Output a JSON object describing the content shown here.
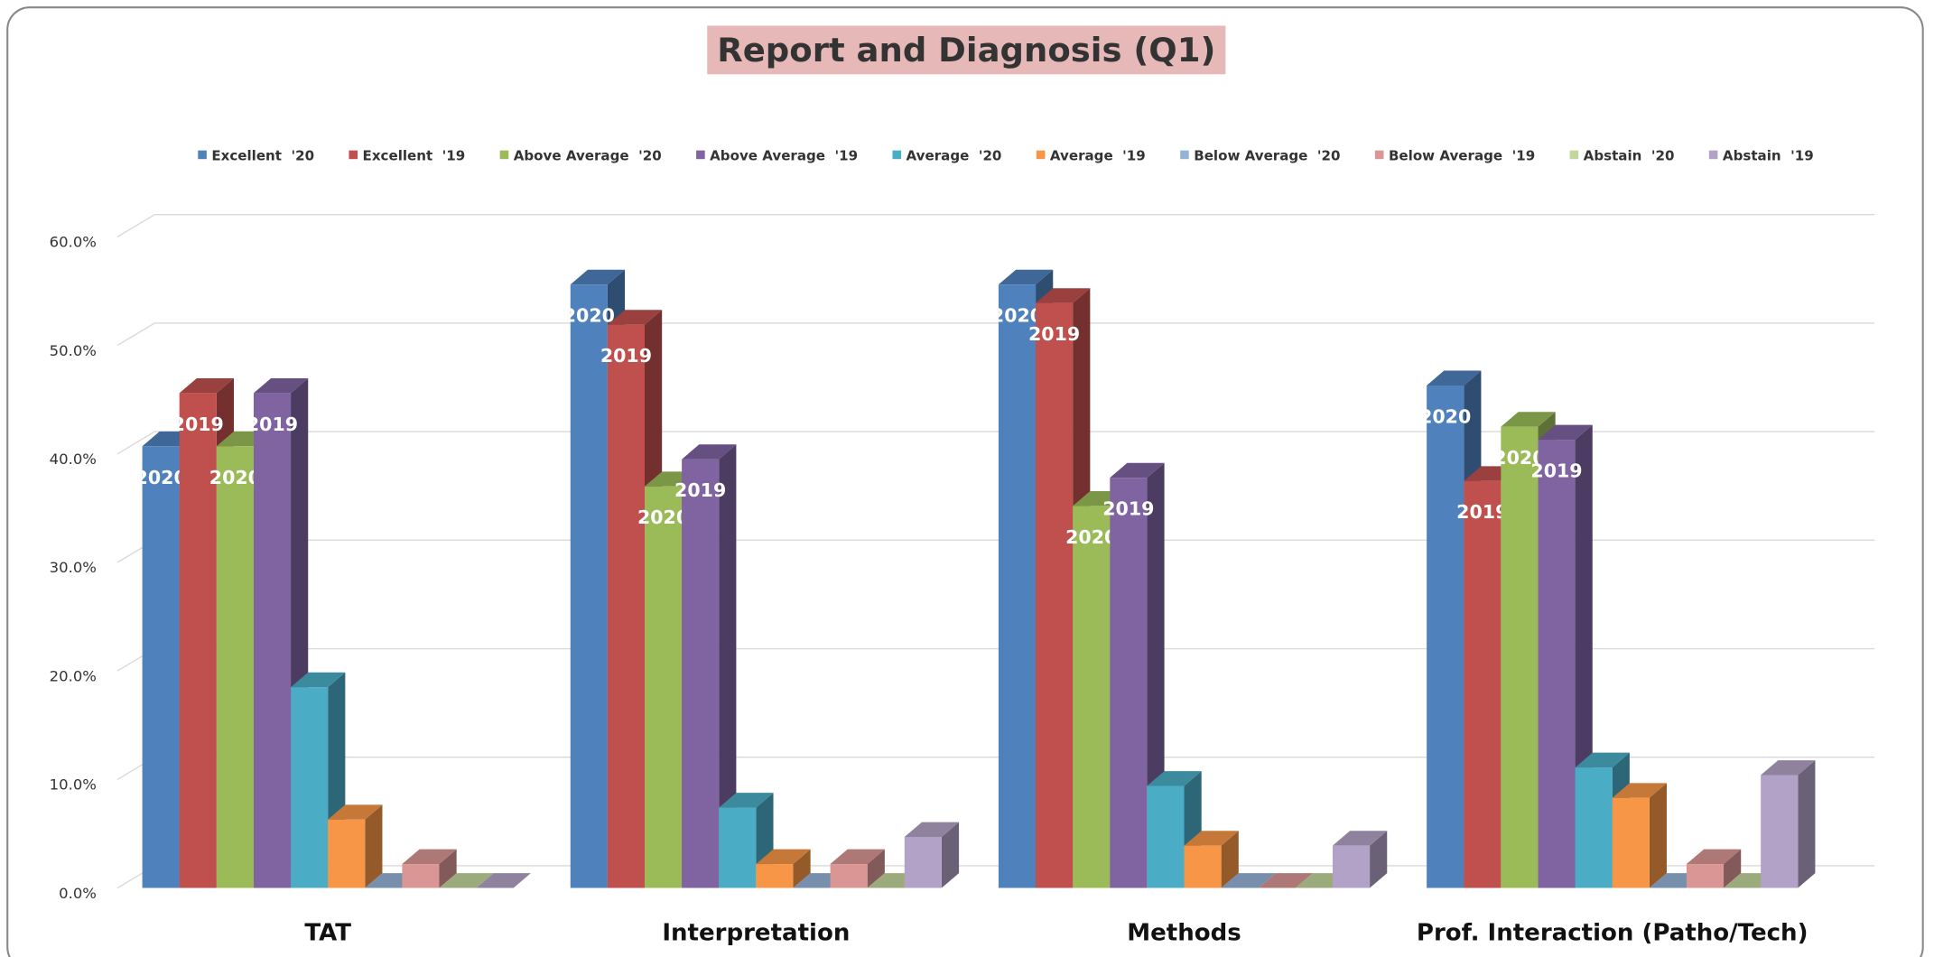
{
  "chart_data": {
    "type": "bar3d",
    "title": "Report and Diagnosis (Q1)",
    "categories": [
      "TAT",
      "Interpretation",
      "Methods",
      "Prof. Interaction (Patho/Tech)"
    ],
    "series": [
      {
        "name": "Excellent  '20",
        "color": "#4f81bd",
        "label": "2020",
        "values": [
          40.7,
          55.6,
          55.6,
          46.3
        ]
      },
      {
        "name": "Excellent  '19",
        "color": "#c0504d",
        "label": "2019",
        "values": [
          45.6,
          51.9,
          53.9,
          37.5
        ]
      },
      {
        "name": "Above Average  '20",
        "color": "#9bbb59",
        "label": "2020",
        "values": [
          40.7,
          37.0,
          35.2,
          42.5
        ]
      },
      {
        "name": "Above Average  '19",
        "color": "#8064a2",
        "label": "2019",
        "values": [
          45.6,
          39.5,
          37.8,
          41.3
        ]
      },
      {
        "name": "Average  '20",
        "color": "#4bacc6",
        "values": [
          18.5,
          7.4,
          9.4,
          11.1
        ]
      },
      {
        "name": "Average  '19",
        "color": "#f79646",
        "values": [
          6.3,
          2.2,
          3.9,
          8.3
        ]
      },
      {
        "name": "Below Average  '20",
        "color": "#95b3d7",
        "values": [
          0,
          0,
          0,
          0
        ]
      },
      {
        "name": "Below Average  '19",
        "color": "#d99694",
        "values": [
          2.2,
          2.2,
          0,
          2.2
        ]
      },
      {
        "name": "Abstain  '20",
        "color": "#c3d69b",
        "values": [
          0,
          0,
          0,
          0
        ]
      },
      {
        "name": "Abstain  '19",
        "color": "#b3a2c7",
        "values": [
          0,
          4.7,
          3.9,
          10.4
        ]
      }
    ],
    "ylim": [
      0,
      60
    ],
    "yticks": [
      {
        "value": 0,
        "label": "0.0%"
      },
      {
        "value": 10,
        "label": "10.0%"
      },
      {
        "value": 20,
        "label": "20.0%"
      },
      {
        "value": 30,
        "label": "30.0%"
      },
      {
        "value": 40,
        "label": "40.0%"
      },
      {
        "value": 50,
        "label": "50.0%"
      },
      {
        "value": 60,
        "label": "60.0%"
      }
    ],
    "grid": true,
    "legend": "top"
  }
}
